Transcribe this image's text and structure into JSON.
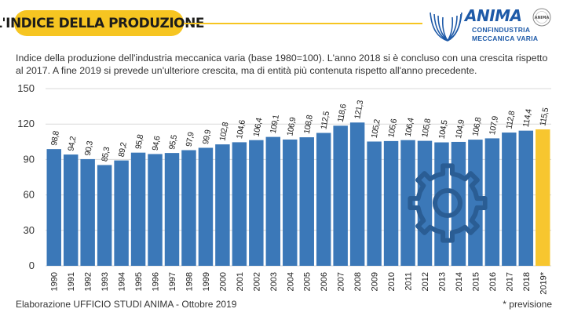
{
  "header": {
    "title": "L'INDICE DELLA PRODUZIONE",
    "logo": {
      "name": "ANIMA",
      "line1": "CONFINDUSTRIA",
      "line2": "MECCANICA VARIA",
      "seal_text": "ANIMA"
    }
  },
  "description": "Indice della produzione dell'industria meccanica varia (base 1980=100). L'anno 2018 si è concluso con una crescita rispetto al 2017. A fine 2019 si prevede un'ulteriore crescita, ma di entità più contenuta rispetto all'anno precedente.",
  "footer": {
    "source": "Elaborazione UFFICIO STUDI ANIMA - Ottobre 2019",
    "note": "* previsione"
  },
  "colors": {
    "bar": "#3b78b8",
    "forecast_bar": "#f7c62f",
    "accent": "#f6c521",
    "brand": "#1e5aa8"
  },
  "chart_data": {
    "type": "bar",
    "categories": [
      "1990",
      "1991",
      "1992",
      "1993",
      "1994",
      "1995",
      "1996",
      "1997",
      "1998",
      "1999",
      "2000",
      "2001",
      "2002",
      "2003",
      "2004",
      "2005",
      "2006",
      "2007",
      "2008",
      "2009",
      "2010",
      "2011",
      "2012",
      "2013",
      "2014",
      "2015",
      "2016",
      "2017",
      "2018",
      "2019*"
    ],
    "values": [
      98.8,
      94.2,
      90.3,
      85.3,
      89.2,
      95.8,
      94.6,
      95.5,
      97.9,
      99.9,
      102.8,
      104.6,
      106.4,
      109.1,
      106.9,
      108.8,
      112.5,
      118.6,
      121.3,
      105.2,
      105.6,
      106.4,
      105.8,
      104.5,
      104.9,
      106.8,
      107.9,
      112.8,
      114.4,
      115.5
    ],
    "labels": [
      "98,8",
      "94,2",
      "90,3",
      "85,3",
      "89,2",
      "95,8",
      "94,6",
      "95,5",
      "97,9",
      "99,9",
      "102,8",
      "104,6",
      "106,4",
      "109,1",
      "106,9",
      "108,8",
      "112,5",
      "118,6",
      "121,3",
      "105,2",
      "105,6",
      "106,4",
      "105,8",
      "104,5",
      "104,9",
      "106,8",
      "107,9",
      "112,8",
      "114,4",
      "115,5"
    ],
    "forecast_categories": [
      "2019*"
    ],
    "ylim": [
      0,
      150
    ],
    "yticks": [
      0,
      30,
      60,
      90,
      120,
      150
    ],
    "grid": true,
    "legend": "none",
    "decoration": "gear-icon"
  }
}
